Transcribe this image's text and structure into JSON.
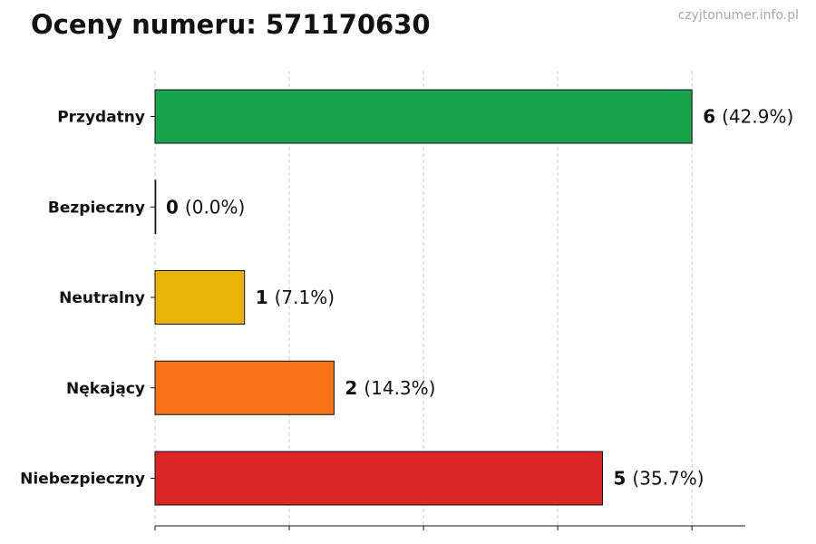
{
  "chart_data": {
    "type": "bar",
    "orientation": "horizontal",
    "title": "Oceny numeru: 571170630",
    "categories": [
      "Przydatny",
      "Bezpieczny",
      "Neutralny",
      "Nękający",
      "Niebezpieczny"
    ],
    "values": [
      6,
      0,
      1,
      2,
      5
    ],
    "percent_labels": [
      "(42.9%)",
      "(0.0%)",
      "(7.1%)",
      "(14.3%)",
      "(35.7%)"
    ],
    "colors": [
      "#16a34a",
      "#16a34a",
      "#eab308",
      "#f97316",
      "#dc2626"
    ],
    "xlim": [
      0,
      6.6
    ],
    "x_gridlines": [
      0,
      1.5,
      3,
      4.5,
      6
    ],
    "grid": "x-dashed",
    "legend": "none"
  },
  "watermark": "czyjtonumer.info.pl"
}
